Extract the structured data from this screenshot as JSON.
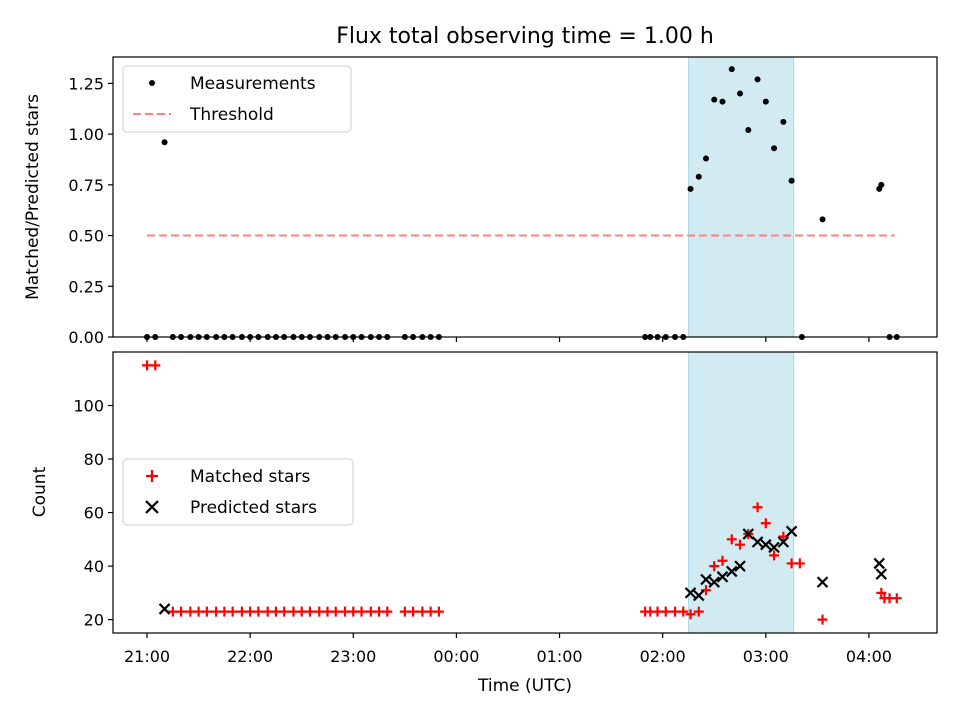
{
  "chart_data": {
    "title": "Flux total observing time = 1.00 h",
    "x_axis": {
      "label": "Time (UTC)",
      "unit": "hours since 21:00 UTC",
      "range": [
        -0.33,
        7.66
      ],
      "ticks": [
        0,
        1,
        2,
        3,
        4,
        5,
        6,
        7
      ],
      "tick_labels": [
        "21:00",
        "22:00",
        "23:00",
        "00:00",
        "01:00",
        "02:00",
        "03:00",
        "04:00"
      ]
    },
    "highlight": {
      "x_start": 5.25,
      "x_end": 6.27,
      "color": "#add8e6"
    },
    "panels": [
      {
        "type": "scatter",
        "ylabel": "Matched/Predicted stars",
        "ylim": [
          0,
          1.38
        ],
        "yticks": [
          0,
          0.25,
          0.5,
          0.75,
          1.0,
          1.25
        ],
        "ytick_labels": [
          "0.00",
          "0.25",
          "0.50",
          "0.75",
          "1.00",
          "1.25"
        ],
        "legend": {
          "position": "upper-left",
          "entries": [
            "Measurements",
            "Threshold"
          ]
        },
        "threshold": {
          "name": "Threshold",
          "y": 0.5,
          "x_range": [
            0,
            7.25
          ],
          "color": "#ff8080"
        },
        "series": [
          {
            "name": "Measurements",
            "marker": "dot",
            "color": "#000000",
            "points": [
              [
                0,
                0
              ],
              [
                0.08,
                0
              ],
              [
                0.17,
                0.96
              ],
              [
                0.25,
                0
              ],
              [
                0.33,
                0
              ],
              [
                0.42,
                0
              ],
              [
                0.5,
                0
              ],
              [
                0.58,
                0
              ],
              [
                0.67,
                0
              ],
              [
                0.75,
                0
              ],
              [
                0.83,
                0
              ],
              [
                0.92,
                0
              ],
              [
                1.0,
                0
              ],
              [
                1.08,
                0
              ],
              [
                1.17,
                0
              ],
              [
                1.25,
                0
              ],
              [
                1.33,
                0
              ],
              [
                1.42,
                0
              ],
              [
                1.5,
                0
              ],
              [
                1.58,
                0
              ],
              [
                1.67,
                0
              ],
              [
                1.75,
                0
              ],
              [
                1.83,
                0
              ],
              [
                1.92,
                0
              ],
              [
                2.0,
                0
              ],
              [
                2.08,
                0
              ],
              [
                2.17,
                0
              ],
              [
                2.25,
                0
              ],
              [
                2.33,
                0
              ],
              [
                2.5,
                0
              ],
              [
                2.58,
                0
              ],
              [
                2.67,
                0
              ],
              [
                2.75,
                0
              ],
              [
                2.83,
                0
              ],
              [
                4.83,
                0
              ],
              [
                4.88,
                0
              ],
              [
                4.95,
                0
              ],
              [
                5.03,
                0
              ],
              [
                5.12,
                0
              ],
              [
                5.2,
                0
              ],
              [
                5.27,
                0.73
              ],
              [
                5.35,
                0.79
              ],
              [
                5.42,
                0.88
              ],
              [
                5.5,
                1.17
              ],
              [
                5.58,
                1.16
              ],
              [
                5.67,
                1.32
              ],
              [
                5.75,
                1.2
              ],
              [
                5.83,
                1.02
              ],
              [
                5.92,
                1.27
              ],
              [
                6.0,
                1.16
              ],
              [
                6.08,
                0.93
              ],
              [
                6.17,
                1.06
              ],
              [
                6.25,
                0.77
              ],
              [
                6.35,
                0
              ],
              [
                6.55,
                0.58
              ],
              [
                7.1,
                0.73
              ],
              [
                7.12,
                0.75
              ],
              [
                7.2,
                0
              ],
              [
                7.27,
                0
              ]
            ]
          }
        ]
      },
      {
        "type": "scatter",
        "ylabel": "Count",
        "ylim": [
          15,
          120
        ],
        "yticks": [
          20,
          40,
          60,
          80,
          100
        ],
        "ytick_labels": [
          "20",
          "40",
          "60",
          "80",
          "100"
        ],
        "legend": {
          "position": "center-left",
          "entries": [
            "Matched stars",
            "Predicted stars"
          ]
        },
        "series": [
          {
            "name": "Matched stars",
            "marker": "plus",
            "color": "#ff0000",
            "points": [
              [
                0,
                115
              ],
              [
                0.08,
                115
              ],
              [
                0.25,
                23
              ],
              [
                0.33,
                23
              ],
              [
                0.42,
                23
              ],
              [
                0.5,
                23
              ],
              [
                0.58,
                23
              ],
              [
                0.67,
                23
              ],
              [
                0.75,
                23
              ],
              [
                0.83,
                23
              ],
              [
                0.92,
                23
              ],
              [
                1.0,
                23
              ],
              [
                1.08,
                23
              ],
              [
                1.17,
                23
              ],
              [
                1.25,
                23
              ],
              [
                1.33,
                23
              ],
              [
                1.42,
                23
              ],
              [
                1.5,
                23
              ],
              [
                1.58,
                23
              ],
              [
                1.67,
                23
              ],
              [
                1.75,
                23
              ],
              [
                1.83,
                23
              ],
              [
                1.92,
                23
              ],
              [
                2.0,
                23
              ],
              [
                2.08,
                23
              ],
              [
                2.17,
                23
              ],
              [
                2.25,
                23
              ],
              [
                2.33,
                23
              ],
              [
                2.5,
                23
              ],
              [
                2.58,
                23
              ],
              [
                2.67,
                23
              ],
              [
                2.75,
                23
              ],
              [
                2.83,
                23
              ],
              [
                4.83,
                23
              ],
              [
                4.88,
                23
              ],
              [
                4.95,
                23
              ],
              [
                5.03,
                23
              ],
              [
                5.12,
                23
              ],
              [
                5.2,
                23
              ],
              [
                5.27,
                22
              ],
              [
                5.35,
                23
              ],
              [
                5.42,
                31
              ],
              [
                5.5,
                40
              ],
              [
                5.58,
                42
              ],
              [
                5.67,
                50
              ],
              [
                5.75,
                48
              ],
              [
                5.83,
                52
              ],
              [
                5.92,
                62
              ],
              [
                6.0,
                56
              ],
              [
                6.08,
                44
              ],
              [
                6.17,
                51
              ],
              [
                6.25,
                41
              ],
              [
                6.33,
                41
              ],
              [
                6.55,
                20
              ],
              [
                7.12,
                30
              ],
              [
                7.15,
                28
              ],
              [
                7.2,
                28
              ],
              [
                7.27,
                28
              ]
            ]
          },
          {
            "name": "Predicted stars",
            "marker": "x",
            "color": "#000000",
            "points": [
              [
                0.17,
                24
              ],
              [
                5.27,
                30
              ],
              [
                5.35,
                29
              ],
              [
                5.42,
                35
              ],
              [
                5.5,
                34
              ],
              [
                5.58,
                36
              ],
              [
                5.67,
                38
              ],
              [
                5.75,
                40
              ],
              [
                5.83,
                52
              ],
              [
                5.92,
                49
              ],
              [
                6.0,
                48
              ],
              [
                6.08,
                47
              ],
              [
                6.17,
                49
              ],
              [
                6.25,
                53
              ],
              [
                6.55,
                34
              ],
              [
                7.1,
                41
              ],
              [
                7.12,
                37
              ]
            ]
          }
        ]
      }
    ]
  }
}
